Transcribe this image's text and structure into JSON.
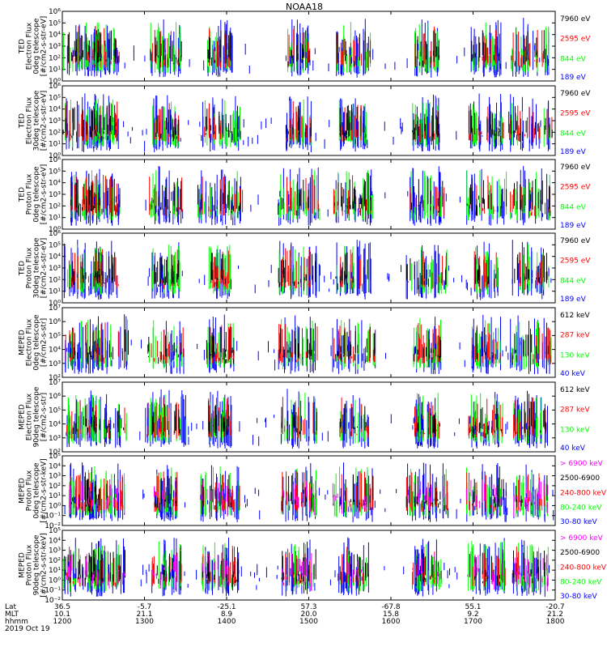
{
  "title": "NOAA18",
  "colors": {
    "blue": "#0000ff",
    "red": "#ff0000",
    "green": "#00ff00",
    "black": "#000000",
    "magenta": "#ff00ff"
  },
  "chart_data": {
    "type": "scatter",
    "x_range_utc": [
      "2019-10-19 12:00",
      "2019-10-19 18:00"
    ],
    "panels": [
      {
        "ylabel_lines": [
          "TED",
          "Electron Flux",
          "0deg telescope",
          "[#/cm2-s-str-eV]"
        ],
        "ylog": [
          0,
          6
        ],
        "yticks": [
          "10⁰",
          "10¹",
          "10²",
          "10³",
          "10⁴",
          "10⁵",
          "10⁶"
        ],
        "channels": [
          {
            "label": "7960 eV",
            "color": "#000000"
          },
          {
            "label": "2595 eV",
            "color": "#ff0000"
          },
          {
            "label": "844 eV",
            "color": "#00ff00"
          },
          {
            "label": "189 eV",
            "color": "#0000ff"
          }
        ]
      },
      {
        "ylabel_lines": [
          "TED",
          "Electron Flux",
          "30deg telescope",
          "[#/cm2-s-str-eV]"
        ],
        "ylog": [
          0,
          6
        ],
        "yticks": [
          "10⁰",
          "10¹",
          "10²",
          "10³",
          "10⁴",
          "10⁵",
          "10⁶"
        ],
        "channels": [
          {
            "label": "7960 eV",
            "color": "#000000"
          },
          {
            "label": "2595 eV",
            "color": "#ff0000"
          },
          {
            "label": "844 eV",
            "color": "#00ff00"
          },
          {
            "label": "189 eV",
            "color": "#0000ff"
          }
        ]
      },
      {
        "ylabel_lines": [
          "TED",
          "Proton Flux",
          "0deg telescope",
          "[#/cm2-s-str-eV]"
        ],
        "ylog": [
          0,
          6
        ],
        "yticks": [
          "10⁰",
          "10¹",
          "10²",
          "10³",
          "10⁴",
          "10⁵",
          "10⁶"
        ],
        "channels": [
          {
            "label": "7960 eV",
            "color": "#000000"
          },
          {
            "label": "2595 eV",
            "color": "#ff0000"
          },
          {
            "label": "844 eV",
            "color": "#00ff00"
          },
          {
            "label": "189 eV",
            "color": "#0000ff"
          }
        ]
      },
      {
        "ylabel_lines": [
          "TED",
          "Proton Flux",
          "30deg telescope",
          "[#/cm2-s-str-eV]"
        ],
        "ylog": [
          0,
          6
        ],
        "yticks": [
          "10⁰",
          "10¹",
          "10²",
          "10³",
          "10⁴",
          "10⁵",
          "10⁶"
        ],
        "channels": [
          {
            "label": "7960 eV",
            "color": "#000000"
          },
          {
            "label": "2595 eV",
            "color": "#ff0000"
          },
          {
            "label": "844 eV",
            "color": "#00ff00"
          },
          {
            "label": "189 eV",
            "color": "#0000ff"
          }
        ]
      },
      {
        "ylabel_lines": [
          "MEPED",
          "Electron Flux",
          "0deg telescope",
          "[#/cm2-s-str]"
        ],
        "ylog": [
          2,
          7
        ],
        "yticks": [
          "10²",
          "10³",
          "10⁴",
          "10⁵",
          "10⁶",
          "10⁷"
        ],
        "channels": [
          {
            "label": "612 keV",
            "color": "#000000"
          },
          {
            "label": "287 keV",
            "color": "#ff0000"
          },
          {
            "label": "130 keV",
            "color": "#00ff00"
          },
          {
            "label": "40 keV",
            "color": "#0000ff"
          }
        ]
      },
      {
        "ylabel_lines": [
          "MEPED",
          "Electron Flux",
          "90deg telescope",
          "[#/cm2-s-str]"
        ],
        "ylog": [
          2,
          7
        ],
        "yticks": [
          "10²",
          "10³",
          "10⁴",
          "10⁵",
          "10⁶",
          "10⁷"
        ],
        "channels": [
          {
            "label": "612 keV",
            "color": "#000000"
          },
          {
            "label": "287 keV",
            "color": "#ff0000"
          },
          {
            "label": "130 keV",
            "color": "#00ff00"
          },
          {
            "label": "40 keV",
            "color": "#0000ff"
          }
        ]
      },
      {
        "ylabel_lines": [
          "MEPED",
          "Proton Flux",
          "0deg telescope",
          "[#/cm2-s-str-keV]"
        ],
        "ylog": [
          -2,
          5
        ],
        "yticks": [
          "10⁻²",
          "10⁻¹",
          "10⁰",
          "10¹",
          "10²",
          "10³",
          "10⁴",
          "10⁵"
        ],
        "channels": [
          {
            "label": "> 6900 keV",
            "color": "#ff00ff"
          },
          {
            "label": "2500-6900",
            "color": "#000000"
          },
          {
            "label": "240-800 keV",
            "color": "#ff0000"
          },
          {
            "label": "80-240 keV",
            "color": "#00ff00"
          },
          {
            "label": "30-80 keV",
            "color": "#0000ff"
          }
        ]
      },
      {
        "ylabel_lines": [
          "MEPED",
          "Proton Flux",
          "90deg telescope",
          "[#/cm2-s-str-keV]"
        ],
        "ylog": [
          -2,
          5
        ],
        "yticks": [
          "10⁻²",
          "10⁻¹",
          "10⁰",
          "10¹",
          "10²",
          "10³",
          "10⁴",
          "10⁵"
        ],
        "channels": [
          {
            "label": "> 6900 keV",
            "color": "#ff00ff"
          },
          {
            "label": "2500-6900",
            "color": "#000000"
          },
          {
            "label": "240-800 keV",
            "color": "#ff0000"
          },
          {
            "label": "80-240 keV",
            "color": "#00ff00"
          },
          {
            "label": "30-80 keV",
            "color": "#0000ff"
          }
        ]
      }
    ],
    "xaxis": {
      "row_labels": [
        "Lat",
        "MLT",
        "hhmm"
      ],
      "date_label": "2019 Oct 19",
      "ticks": [
        {
          "lat": "36.5",
          "mlt": "10.1",
          "hhmm": "1200"
        },
        {
          "lat": "-5.7",
          "mlt": "21.1",
          "hhmm": "1300"
        },
        {
          "lat": "-25.1",
          "mlt": "8.9",
          "hhmm": "1400"
        },
        {
          "lat": "57.3",
          "mlt": "20.0",
          "hhmm": "1500"
        },
        {
          "lat": "-67.8",
          "mlt": "15.8",
          "hhmm": "1600"
        },
        {
          "lat": "55.1",
          "mlt": "9.2",
          "hhmm": "1700"
        },
        {
          "lat": "-20.7",
          "mlt": "21.2",
          "hhmm": "1800"
        }
      ]
    }
  }
}
